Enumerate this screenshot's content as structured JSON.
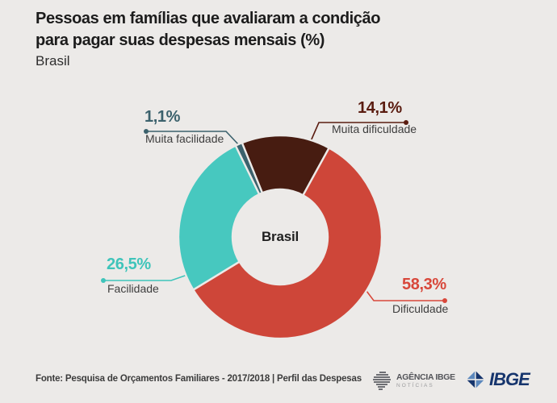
{
  "page": {
    "background": "#ECEAE8",
    "title_line1": "Pessoas em famílias que avaliaram a condição",
    "title_line2": "para pagar suas despesas mensais (%)",
    "subtitle": "Brasil"
  },
  "chart_data": {
    "type": "pie",
    "donut": true,
    "title": "Pessoas em famílias que avaliaram a condição para pagar suas despesas mensais (%)",
    "subtitle": "Brasil",
    "center_label": "Brasil",
    "start_angle_deg": -22,
    "clockwise": true,
    "legend_position": "callout-labels",
    "slices": [
      {
        "label": "Muita dificuldade",
        "value": 14.1,
        "display": "14,1%",
        "color": "#471C11",
        "label_color": "#5A1C10"
      },
      {
        "label": "Dificuldade",
        "value": 58.3,
        "display": "58,3%",
        "color": "#CE4639",
        "label_color": "#D8473A"
      },
      {
        "label": "Facilidade",
        "value": 26.5,
        "display": "26,5%",
        "color": "#47C8BF",
        "label_color": "#3FC4BA"
      },
      {
        "label": "Muita facilidade",
        "value": 1.1,
        "display": "1,1%",
        "color": "#3B616C",
        "label_color": "#3B616C"
      }
    ]
  },
  "footer": {
    "source": "Fonte: Pesquisa de Orçamentos Familiares - 2017/2018 | Perfil das Despesas",
    "agencia_logo": {
      "part1": "AGÊNCIA",
      "part2": "IBGE",
      "subtitle": "NOTÍCIAS"
    },
    "ibge_logo": {
      "text": "IBGE"
    }
  }
}
